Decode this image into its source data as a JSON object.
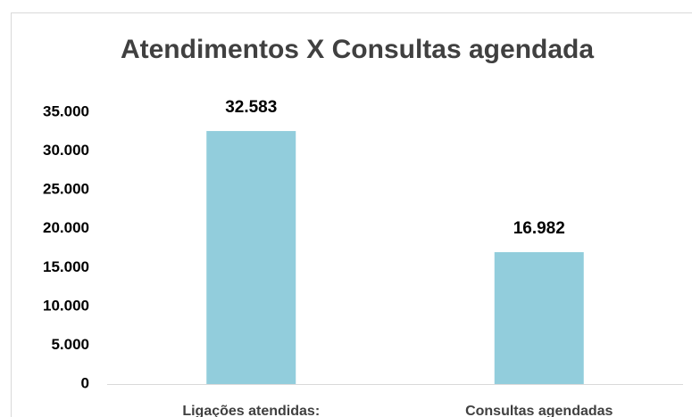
{
  "chart_data": {
    "type": "bar",
    "title": "Atendimentos X Consultas agendada",
    "categories": [
      "Ligações atendidas:",
      "Consultas agendadas"
    ],
    "values": [
      32583,
      16982
    ],
    "value_labels": [
      "32.583",
      "16.982"
    ],
    "color": "#92cddc",
    "ylim": [
      0,
      35000
    ],
    "yticks": [
      0,
      {
        "value": 5000,
        "label": "5.000"
      },
      {
        "value": 10000,
        "label": "10.000"
      },
      {
        "value": 15000,
        "label": "15.000"
      },
      {
        "value": 20000,
        "label": "20.000"
      },
      {
        "value": 25000,
        "label": "25.000"
      },
      {
        "value": 30000,
        "label": "30.000"
      },
      {
        "value": 35000,
        "label": "35.000"
      }
    ],
    "grid": false
  }
}
